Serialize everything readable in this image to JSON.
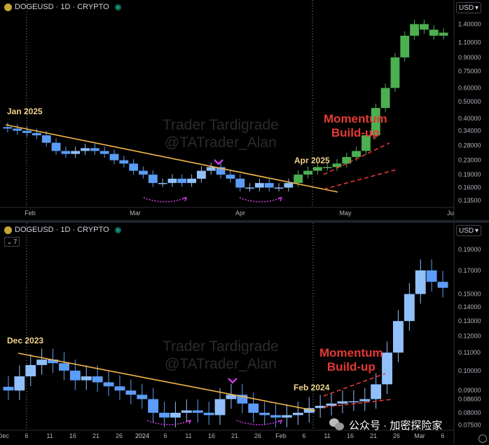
{
  "panel1": {
    "symbol": "DOGEUSD · 1D · CRYPTO",
    "currency": "USD",
    "currency_arrow": "▾",
    "watermark": [
      "Trader Tardigrade",
      "@TATrader_Alan"
    ],
    "start_label": "Jan 2025",
    "breakout_label": "Apr 2025",
    "momentum_label": [
      "Momentum",
      "Build-up"
    ],
    "x_ticks": [
      "Feb",
      "Mar",
      "Apr",
      "May",
      "Ju"
    ],
    "y_ticks": [
      "1.40000",
      "1.10000",
      "0.90000",
      "0.75000",
      "0.60000",
      "0.50000",
      "0.40000",
      "0.34000",
      "0.28000",
      "0.23000",
      "0.19000",
      "0.16000",
      "0.13500"
    ]
  },
  "panel2": {
    "symbol": "DOGEUSD · 1D · CRYPTO",
    "currency": "USD",
    "currency_arrow": "▾",
    "indicator_count": "7",
    "indicator_chevron": "⌄",
    "watermark": [
      "Trader Tardigrade",
      "@TATrader_Alan"
    ],
    "start_label": "Dec 2023",
    "breakout_label": "Feb 2024",
    "momentum_label": [
      "Momentum",
      "Build-up"
    ],
    "x_ticks": [
      "Dec",
      "6",
      "11",
      "16",
      "21",
      "26",
      "2024",
      "6",
      "11",
      "16",
      "21",
      "26",
      "Feb",
      "6",
      "11",
      "16",
      "21",
      "26",
      "Mar",
      "6"
    ],
    "y_ticks": [
      "0.19000",
      "0.17000",
      "0.15000",
      "0.14000",
      "0.13000",
      "0.12000",
      "0.11000",
      "0.10000",
      "0.09000",
      "0.08600",
      "0.08000",
      "0.07500"
    ]
  },
  "footer": {
    "wechat_text": "公众号 · 加密探险家"
  },
  "chart_data": [
    {
      "type": "candlestick",
      "title": "DOGEUSD · 1D · CRYPTO",
      "y_scale": "log",
      "ylim": [
        0.13,
        1.6
      ],
      "x_ticks": [
        "Feb",
        "Mar",
        "Apr",
        "May",
        "Ju"
      ],
      "approx_daily_close_trajectory": [
        0.35,
        0.34,
        0.33,
        0.32,
        0.29,
        0.26,
        0.25,
        0.26,
        0.27,
        0.26,
        0.25,
        0.23,
        0.22,
        0.2,
        0.19,
        0.17,
        0.17,
        0.18,
        0.17,
        0.18,
        0.2,
        0.21,
        0.19,
        0.18,
        0.16,
        0.16,
        0.17,
        0.16,
        0.16,
        0.17,
        0.19,
        0.2,
        0.21,
        0.21,
        0.22,
        0.24,
        0.26,
        0.32,
        0.46,
        0.6,
        0.9,
        1.2,
        1.4,
        1.3,
        1.2,
        1.25
      ],
      "annotations": [
        "Jan 2025",
        "Apr 2025",
        "Momentum Build-up"
      ],
      "trendline": "descending resistance from Jan 2025 to Apr 2025"
    },
    {
      "type": "candlestick",
      "title": "DOGEUSD · 1D · CRYPTO",
      "y_scale": "log",
      "ylim": [
        0.074,
        0.2
      ],
      "x_ticks": [
        "Dec",
        "6",
        "11",
        "16",
        "21",
        "26",
        "2024",
        "6",
        "11",
        "16",
        "21",
        "26",
        "Feb",
        "6",
        "11",
        "16",
        "21",
        "26",
        "Mar",
        "6"
      ],
      "approx_daily_close_trajectory": [
        0.09,
        0.097,
        0.103,
        0.106,
        0.104,
        0.1,
        0.095,
        0.097,
        0.094,
        0.092,
        0.09,
        0.088,
        0.086,
        0.08,
        0.078,
        0.08,
        0.081,
        0.08,
        0.079,
        0.086,
        0.088,
        0.084,
        0.08,
        0.079,
        0.078,
        0.079,
        0.08,
        0.082,
        0.083,
        0.084,
        0.085,
        0.085,
        0.086,
        0.093,
        0.11,
        0.13,
        0.15,
        0.17,
        0.16,
        0.155
      ],
      "annotations": [
        "Dec 2023",
        "Feb 2024",
        "Momentum Build-up"
      ],
      "trendline": "descending resistance from Dec 2023 to Feb 2024"
    }
  ]
}
